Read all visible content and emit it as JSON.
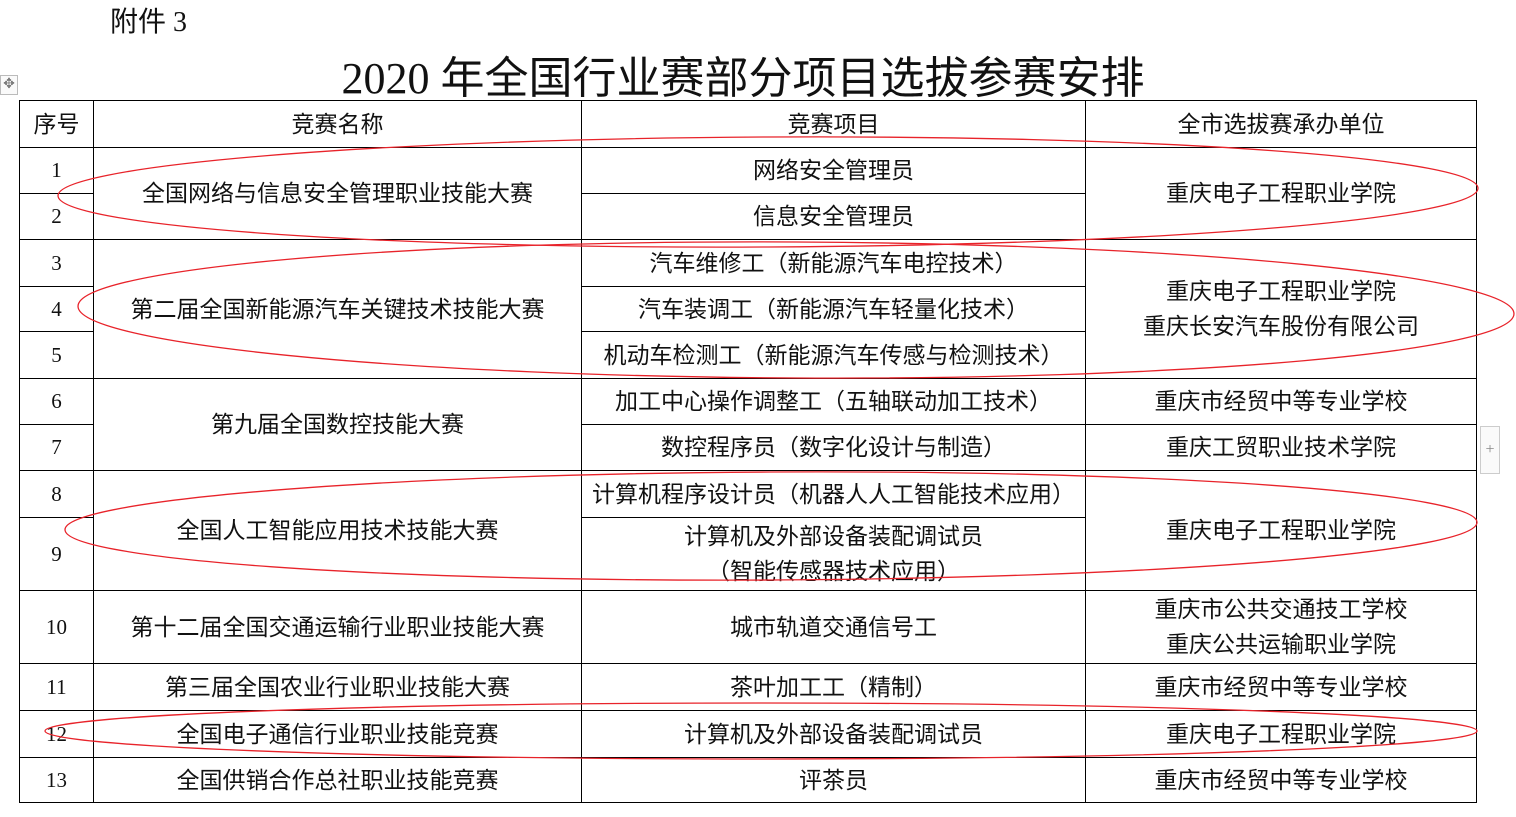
{
  "attachment_label": "附件 3",
  "title": "2020 年全国行业赛部分项目选拔参赛安排",
  "headers": [
    "序号",
    "竞赛名称",
    "竞赛项目",
    "全市选拔赛承办单位"
  ],
  "rows": [
    {
      "no": "1",
      "competition": "全国网络与信息安全管理职业技能大赛",
      "event": "网络安全管理员",
      "host": "重庆电子工程职业学院"
    },
    {
      "no": "2",
      "event": "信息安全管理员"
    },
    {
      "no": "3",
      "competition": "第二届全国新能源汽车关键技术技能大赛",
      "event": "汽车维修工（新能源汽车电控技术）",
      "host": "重庆电子工程职业学院",
      "host2": "重庆长安汽车股份有限公司"
    },
    {
      "no": "4",
      "event": "汽车装调工（新能源汽车轻量化技术）"
    },
    {
      "no": "5",
      "event": "机动车检测工（新能源汽车传感与检测技术）"
    },
    {
      "no": "6",
      "competition": "第九届全国数控技能大赛",
      "event": "加工中心操作调整工（五轴联动加工技术）",
      "host": "重庆市经贸中等专业学校"
    },
    {
      "no": "7",
      "event": "数控程序员（数字化设计与制造）",
      "host": "重庆工贸职业技术学院"
    },
    {
      "no": "8",
      "competition": "全国人工智能应用技术技能大赛",
      "event": "计算机程序设计员（机器人人工智能技术应用）",
      "host": "重庆电子工程职业学院"
    },
    {
      "no": "9",
      "event": "计算机及外部设备装配调试员",
      "event2": "（智能传感器技术应用）"
    },
    {
      "no": "10",
      "competition": "第十二届全国交通运输行业职业技能大赛",
      "event": "城市轨道交通信号工",
      "host": "重庆市公共交通技工学校",
      "host2": "重庆公共运输职业学院"
    },
    {
      "no": "11",
      "competition": "第三届全国农业行业职业技能大赛",
      "event": "茶叶加工工（精制）",
      "host": "重庆市经贸中等专业学校"
    },
    {
      "no": "12",
      "competition": "全国电子通信行业职业技能竞赛",
      "event": "计算机及外部设备装配调试员",
      "host": "重庆电子工程职业学院"
    },
    {
      "no": "13",
      "competition": "全国供销合作总社职业技能竞赛",
      "event": "评茶员",
      "host": "重庆市经贸中等专业学校"
    }
  ],
  "colors": {
    "annotation": "#e8232a",
    "border": "#000000"
  }
}
